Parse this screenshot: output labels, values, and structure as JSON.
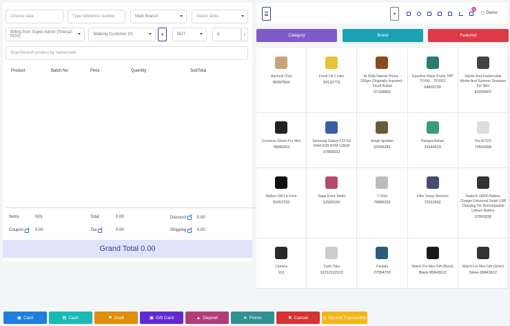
{
  "filters": {
    "date_placeholder": "Choose date",
    "ref_placeholder": "Type reference number",
    "branch": "Main Branch",
    "table_placeholder": "Select table...",
    "biller": "Billing from Super Admin (Sherazi POS)",
    "customer": "Walking Customer (0)",
    "currency": "BDT",
    "qty": "1",
    "info": "i",
    "search_placeholder": "Scan/Search product by name/code"
  },
  "table_headers": [
    "Product",
    "Batch No",
    "Price",
    "Quantity",
    "SubTotal"
  ],
  "summary": {
    "items_label": "Items",
    "items_value": "0(0)",
    "total_label": "Total",
    "total_value": "0.00",
    "discount_label": "Discount",
    "discount_value": "0.00",
    "coupon_label": "Coupon",
    "coupon_value": "0.00",
    "tax_label": "Tax",
    "tax_value": "0.00",
    "shipping_label": "Shipping",
    "shipping_value": "0.00"
  },
  "grand_total": "Grand Total 0.00",
  "header": {
    "plus": "+",
    "notification_count": "37",
    "user": "Demo"
  },
  "tabs": [
    {
      "label": "Category",
      "color": "#7f5bc9"
    },
    {
      "label": "Brand",
      "color": "#1aa2b3"
    },
    {
      "label": "Featured",
      "color": "#dd3a48"
    }
  ],
  "products": [
    {
      "name": "Basmoti Chal",
      "code": "86997504"
    },
    {
      "name": "Fresh Oil 2 Litter",
      "code": "59122776"
    },
    {
      "name": "Al Shifa Natural Honey - 250gm (Originally Imported - Saudi Arabia",
      "code": "07158860"
    },
    {
      "name": "Gasoline Water Pump 7HP TOTAL - TP3302",
      "code": "64803730"
    },
    {
      "name": "Stylish And Fashionable Winter And Summer Sneakers For Men",
      "code": "83325407"
    },
    {
      "name": "Converse Shoes For Men",
      "code": "78990263"
    },
    {
      "name": "Samsung Galaxy F23 5G RAM 6GB ROM 128GB",
      "code": "97866032"
    },
    {
      "name": "Single Ignation",
      "code": "62006281"
    },
    {
      "name": "Rangpa Bahari",
      "code": "31644529"
    },
    {
      "name": "'Dw AC/DC",
      "code": "79501658"
    },
    {
      "name": "Walton 180 Ltr Frize",
      "code": "91057232"
    },
    {
      "name": "Napa Extra Tablet",
      "code": "12920150"
    },
    {
      "name": "T-Shirt",
      "code": "75896333"
    },
    {
      "name": "Filter Setup Services",
      "code": "73311562"
    },
    {
      "name": "Avatech 18650 Battery Charger Universal Smart USB Charging For Rechargeable Lithium Battery",
      "code": "07991836"
    },
    {
      "name": "Camera",
      "code": "101"
    },
    {
      "name": "Cash Taka",
      "code": "12212122121"
    },
    {
      "name": "Panjabi",
      "code": "27554703"
    },
    {
      "name": "Watch For Men Gift (Black)",
      "code": "Black-95843612"
    },
    {
      "name": "Watch For Men Gift (Silver)",
      "code": "Silver-95843612"
    }
  ],
  "actions": [
    {
      "label": "Card",
      "color": "#1e7fe0"
    },
    {
      "label": "Cash",
      "color": "#19b9b4"
    },
    {
      "label": "Draft",
      "color": "#e08e0b"
    },
    {
      "label": "Gift Card",
      "color": "#6129d6"
    },
    {
      "label": "Deposit",
      "color": "#b03d78"
    },
    {
      "label": "Points",
      "color": "#2f9191"
    },
    {
      "label": "Cancel",
      "color": "#d63333"
    },
    {
      "label": "Recent Transaction",
      "color": "#f4b618"
    }
  ]
}
